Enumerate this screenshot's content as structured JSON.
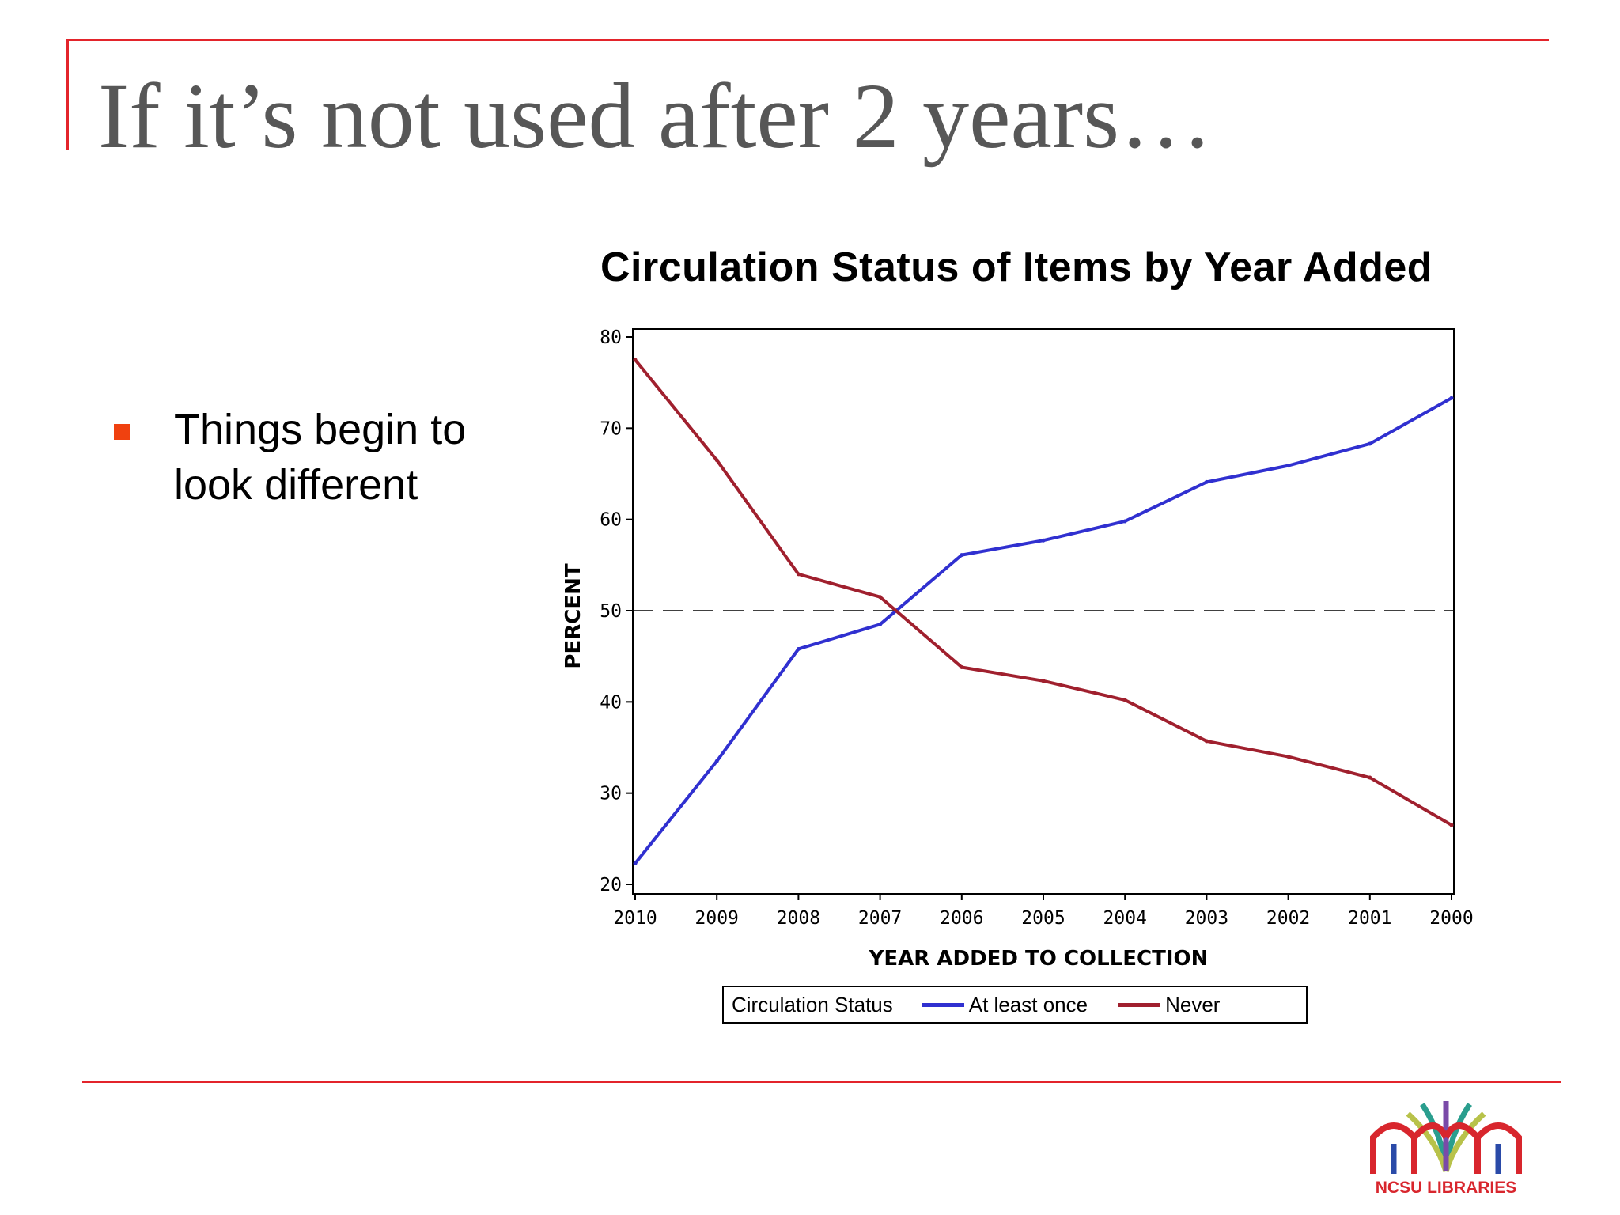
{
  "slide": {
    "title": "If it’s not used after 2 years…",
    "bullets": [
      "Things begin to look different"
    ]
  },
  "colors": {
    "rule": "#e3242b",
    "bullet": "#f0410f",
    "at_least_once": "#3030d0",
    "never": "#a0202e"
  },
  "chart_data": {
    "type": "line",
    "title": "Circulation Status of Items by Year Added",
    "xlabel": "YEAR ADDED TO COLLECTION",
    "ylabel": "PERCENT",
    "categories": [
      "2010",
      "2009",
      "2008",
      "2007",
      "2006",
      "2005",
      "2004",
      "2003",
      "2002",
      "2001",
      "2000"
    ],
    "ylim": [
      20,
      80
    ],
    "yticks": [
      20,
      30,
      40,
      50,
      60,
      70,
      80
    ],
    "reference_line": 50,
    "series": [
      {
        "name": "At least once",
        "color": "#3030d0",
        "values": [
          22.3,
          33.5,
          45.8,
          48.5,
          56.1,
          57.7,
          59.8,
          64.1,
          65.9,
          68.3,
          73.3
        ]
      },
      {
        "name": "Never",
        "color": "#a0202e",
        "values": [
          77.5,
          66.5,
          54.0,
          51.5,
          43.8,
          42.3,
          40.2,
          35.7,
          34.0,
          31.7,
          26.5
        ]
      }
    ],
    "legend": {
      "title": "Circulation Status",
      "position": "bottom"
    }
  },
  "logo": {
    "text": "NCSU LIBRARIES"
  }
}
